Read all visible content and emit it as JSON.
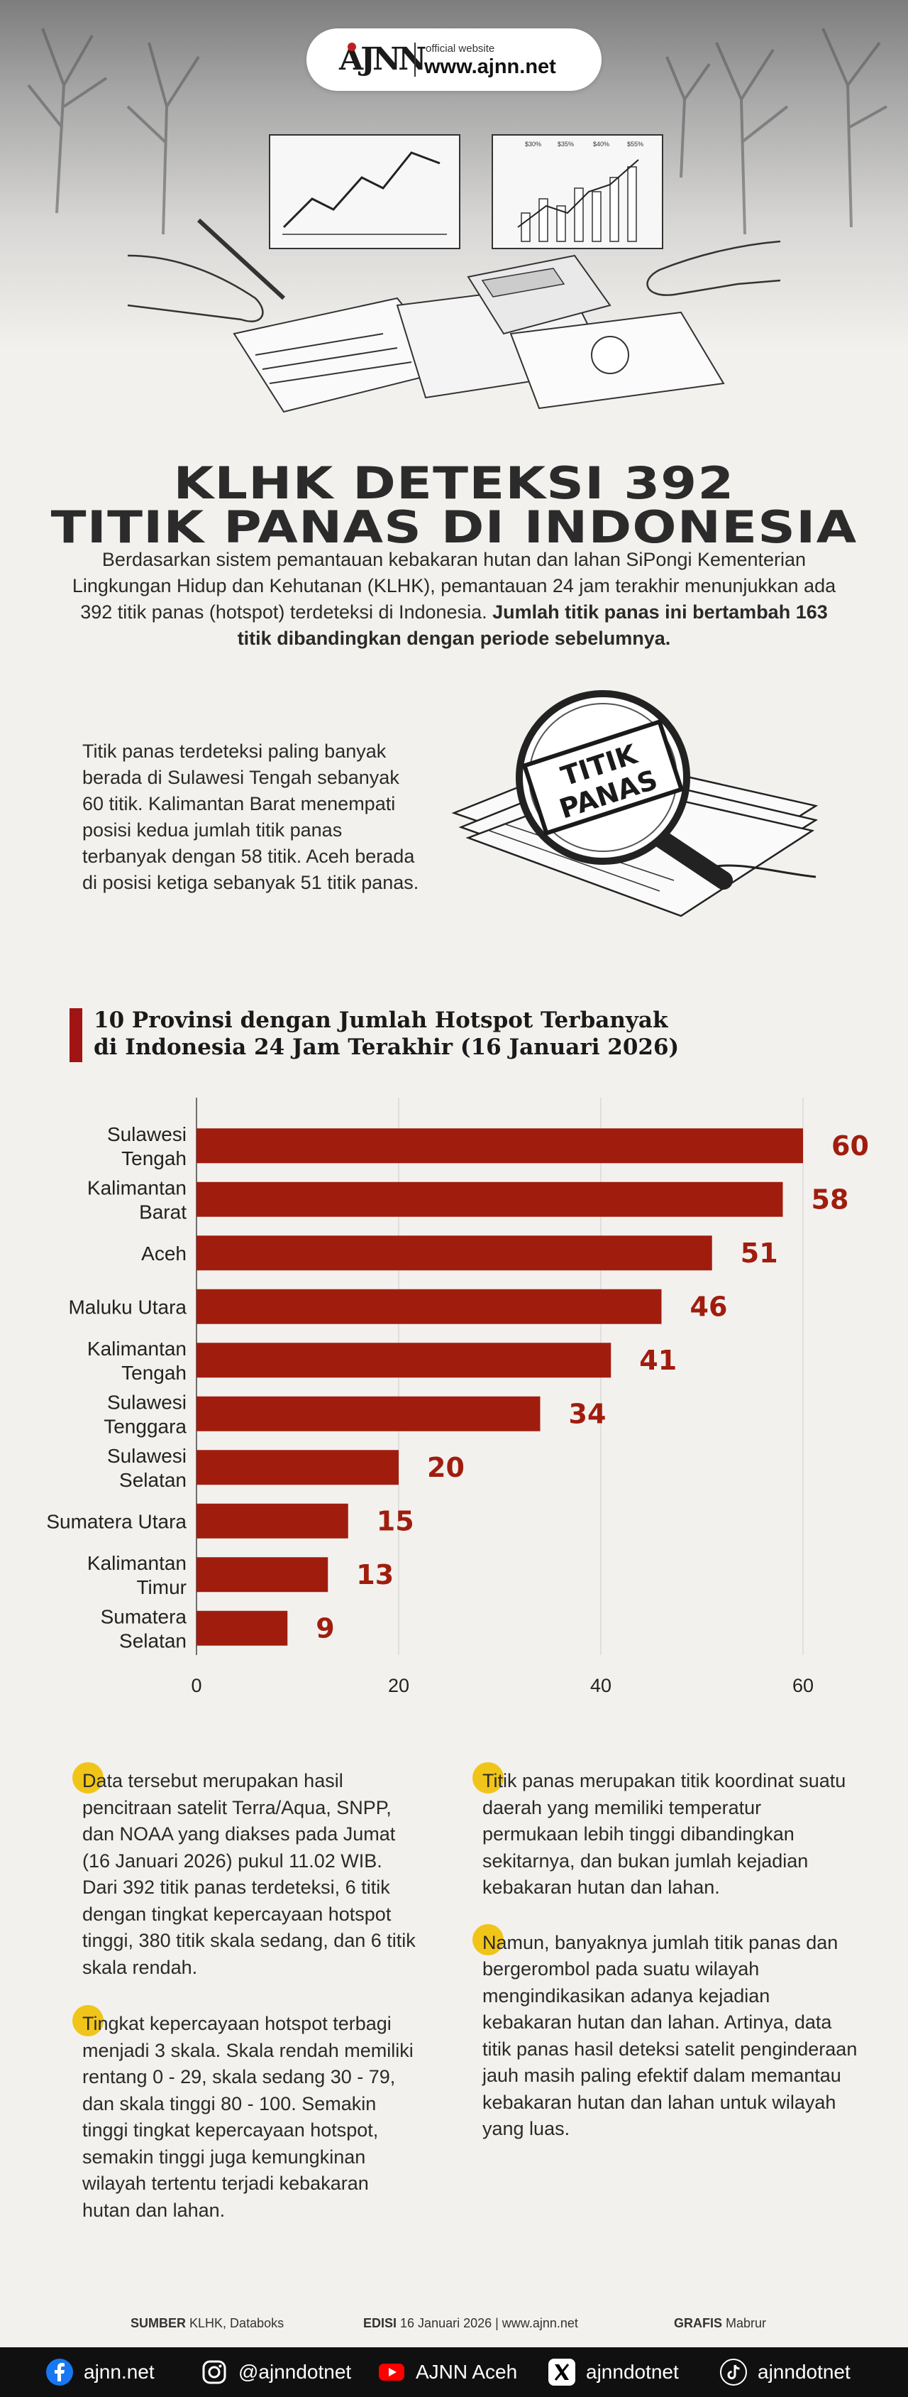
{
  "header": {
    "logo_text": "AJNN",
    "official_label": "official website",
    "url": "www.ajnn.net"
  },
  "hero_mini_chart": {
    "legend": [
      "$30%",
      "$35%",
      "$40%",
      "$55%"
    ]
  },
  "title_lines": [
    "KLHK DETEKSI 392",
    "TITIK PANAS DI INDONESIA"
  ],
  "lead": {
    "normal": "Berdasarkan sistem pemantauan kebakaran hutan dan lahan SiPongi Kementerian Lingkungan Hidup dan Kehutanan (KLHK), pemantauan 24 jam terakhir menunjukkan ada 392 titik panas (hotspot) terdeteksi di Indonesia. ",
    "bold": "Jumlah titik panas ini bertambah 163 titik dibandingkan dengan periode sebelumnya."
  },
  "findings": "Titik panas terdeteksi paling banyak berada di Sulawesi Tengah sebanyak 60 titik. Kalimantan Barat menempati posisi kedua jumlah titik panas terbanyak dengan 58 titik. Aceh berada di posisi ketiga sebanyak 51 titik panas.",
  "stamp_text": [
    "TITIK",
    "PANAS"
  ],
  "chart_data": {
    "type": "bar",
    "orientation": "horizontal",
    "title": "10 Provinsi dengan Jumlah Hotspot Terbanyak di Indonesia 24 Jam Terakhir (16 Januari 2026)",
    "title_lines": [
      "10 Provinsi dengan Jumlah Hotspot Terbanyak",
      "di Indonesia 24 Jam Terakhir (16 Januari 2026)"
    ],
    "categories": [
      [
        "Sulawesi",
        "Tengah"
      ],
      [
        "Kalimantan",
        "Barat"
      ],
      [
        "Aceh"
      ],
      [
        "Maluku Utara"
      ],
      [
        "Kalimantan",
        "Tengah"
      ],
      [
        "Sulawesi",
        "Tenggara"
      ],
      [
        "Sulawesi",
        "Selatan"
      ],
      [
        "Sumatera Utara"
      ],
      [
        "Kalimantan",
        "Timur"
      ],
      [
        "Sumatera",
        "Selatan"
      ]
    ],
    "values": [
      60,
      58,
      51,
      46,
      41,
      34,
      20,
      15,
      13,
      9
    ],
    "xticks": [
      0,
      20,
      40,
      60
    ],
    "xlim": [
      0,
      60
    ],
    "bar_color": "#a01d0e",
    "label_color": "#a01d0e",
    "grid": true
  },
  "columns": {
    "left": [
      "Data tersebut merupakan hasil pencitraan satelit Terra/Aqua, SNPP, dan NOAA yang diakses pada Jumat (16 Januari 2026) pukul 11.02 WIB. Dari 392 titik panas terdeteksi, 6 titik dengan tingkat kepercayaan hotspot tinggi, 380 titik skala sedang, dan 6 titik skala rendah.",
      "Tingkat kepercayaan hotspot terbagi menjadi 3 skala. Skala rendah memiliki rentang 0 - 29, skala sedang 30 - 79, dan skala tinggi 80 - 100. Semakin tinggi tingkat kepercayaan hotspot, semakin tinggi juga kemungkinan wilayah tertentu terjadi kebakaran hutan dan lahan."
    ],
    "right": [
      "Titik panas merupakan titik koordinat suatu daerah yang memiliki temperatur permukaan lebih tinggi dibandingkan sekitarnya, dan bukan jumlah kejadian kebakaran hutan dan lahan.",
      "Namun, banyaknya jumlah titik panas dan bergerombol pada suatu wilayah mengindikasikan adanya kejadian kebakaran hutan dan lahan. Artinya, data titik panas hasil deteksi satelit penginderaan jauh masih paling efektif dalam memantau kebakaran hutan dan lahan untuk wilayah yang luas."
    ]
  },
  "credits": {
    "source_label": "SUMBER",
    "source_value": "KLHK, Databoks",
    "edition_label": "EDISI",
    "edition_value": "16 Januari 2026 | www.ajnn.net",
    "graphic_label": "GRAFIS",
    "graphic_value": "Mabrur"
  },
  "footer": {
    "facebook": "ajnn.net",
    "instagram": "@ajnndotnet",
    "youtube": "AJNN Aceh",
    "x": "ajnndotnet",
    "tiktok": "ajnndotnet"
  },
  "colors": {
    "accent_red": "#a01d0e",
    "bullet_yellow": "#f0c419",
    "footer_bg": "#101010"
  }
}
